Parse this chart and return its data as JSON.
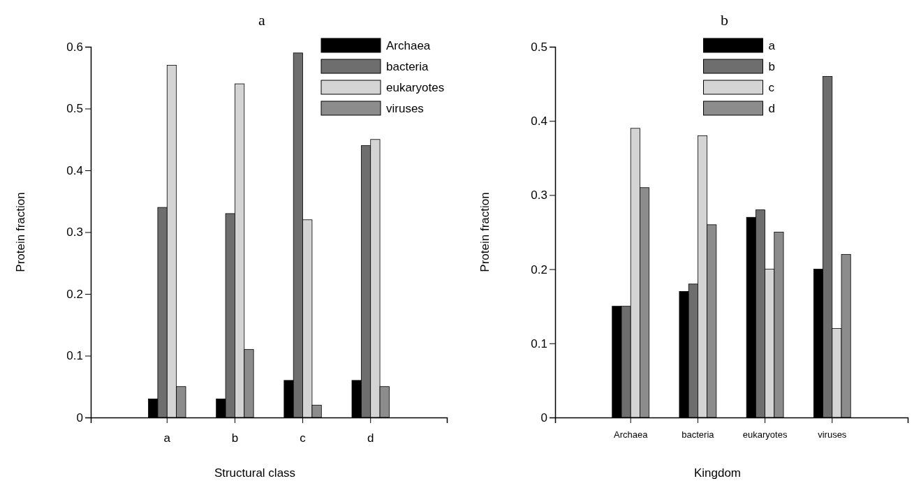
{
  "chart_data": [
    {
      "type": "bar",
      "title": "a",
      "xlabel": "Structural class",
      "ylabel": "Protein fraction",
      "categories": [
        "a",
        "b",
        "c",
        "d"
      ],
      "series": [
        {
          "name": "Archaea",
          "color": "#000000",
          "values": [
            0.03,
            0.03,
            0.06,
            0.06
          ]
        },
        {
          "name": "bacteria",
          "color": "#6e6e6e",
          "values": [
            0.34,
            0.33,
            0.59,
            0.44
          ]
        },
        {
          "name": "eukaryotes",
          "color": "#d4d4d4",
          "values": [
            0.57,
            0.54,
            0.32,
            0.45
          ]
        },
        {
          "name": "viruses",
          "color": "#8c8c8c",
          "values": [
            0.05,
            0.11,
            0.02,
            0.05
          ]
        }
      ],
      "ylim": [
        0,
        0.6
      ],
      "yticks": [
        {
          "value": 0,
          "label": "0"
        },
        0.1,
        0.2,
        0.3,
        0.4,
        0.5,
        0.6
      ],
      "legend": "top right",
      "grid": false
    },
    {
      "type": "bar",
      "title": "b",
      "xlabel": "Kingdom",
      "ylabel": "Protein fraction",
      "categories": [
        "Archaea",
        "bacteria",
        "eukaryotes",
        "viruses"
      ],
      "series": [
        {
          "name": "a",
          "color": "#000000",
          "values": [
            0.15,
            0.17,
            0.27,
            0.2
          ]
        },
        {
          "name": "b",
          "color": "#6e6e6e",
          "values": [
            0.15,
            0.18,
            0.28,
            0.46
          ]
        },
        {
          "name": "c",
          "color": "#d4d4d4",
          "values": [
            0.39,
            0.38,
            0.2,
            0.12
          ]
        },
        {
          "name": "d",
          "color": "#8c8c8c",
          "values": [
            0.31,
            0.26,
            0.25,
            0.22
          ]
        }
      ],
      "ylim": [
        0,
        0.5
      ],
      "yticks": [
        {
          "value": 0,
          "label": "0"
        },
        0.1,
        0.2,
        0.3,
        0.4,
        0.5
      ],
      "legend": "top",
      "grid": false
    }
  ]
}
